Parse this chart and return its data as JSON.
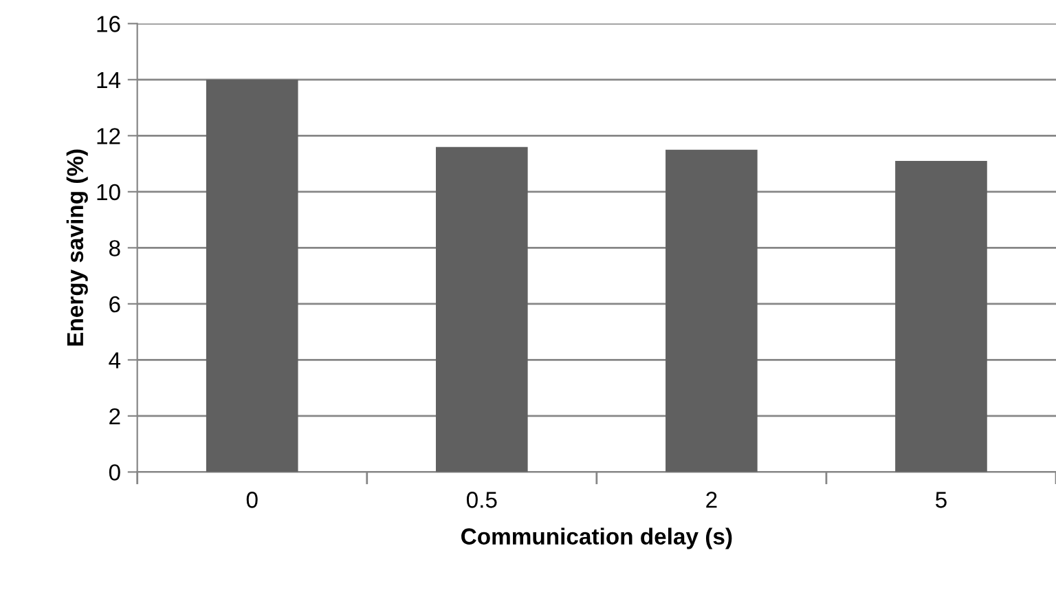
{
  "chart_data": {
    "type": "bar",
    "xlabel": "Communication delay (s)",
    "ylabel": "Energy saving (%)",
    "categories": [
      "0",
      "0.5",
      "2",
      "5"
    ],
    "values": [
      14.0,
      11.6,
      11.5,
      11.1
    ],
    "color": "#606060",
    "ylim": [
      0,
      16
    ],
    "yticks": [
      0,
      2,
      4,
      6,
      8,
      10,
      12,
      14,
      16
    ],
    "grid": "y"
  }
}
